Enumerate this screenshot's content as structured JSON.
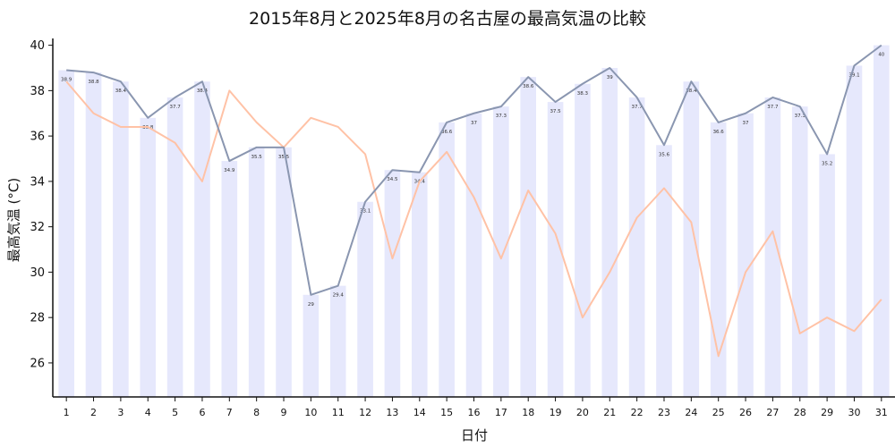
{
  "chart_data": {
    "type": "bar",
    "title": "2015年8月と2025年8月の名古屋の最高気温の比較",
    "xlabel": "日付",
    "ylabel": "最高気温 (°C)",
    "ylim": [
      24.5,
      40.3
    ],
    "yticks": [
      26,
      28,
      30,
      32,
      34,
      36,
      38,
      40
    ],
    "categories": [
      "1",
      "2",
      "3",
      "4",
      "5",
      "6",
      "7",
      "8",
      "9",
      "10",
      "11",
      "12",
      "13",
      "14",
      "15",
      "16",
      "17",
      "18",
      "19",
      "20",
      "21",
      "22",
      "23",
      "24",
      "25",
      "26",
      "27",
      "28",
      "29",
      "30",
      "31"
    ],
    "series": [
      {
        "values": [
          38.9,
          38.8,
          38.4,
          36.8,
          37.7,
          38.4,
          34.9,
          35.5,
          35.5,
          29,
          29.4,
          33.1,
          34.5,
          34.4,
          36.6,
          37,
          37.3,
          38.6,
          37.5,
          38.3,
          39,
          37.7,
          35.6,
          38.4,
          36.6,
          37,
          37.7,
          37.3,
          35.2,
          39.1,
          40
        ],
        "kind": "bar+line",
        "bar_color": "#e6e8fc",
        "line_color": "#8a96b0"
      },
      {
        "values": [
          38.4,
          37.0,
          36.4,
          36.4,
          35.7,
          34.0,
          38.0,
          36.6,
          35.5,
          36.8,
          36.4,
          35.2,
          30.6,
          34.0,
          35.3,
          33.3,
          30.6,
          33.6,
          31.7,
          28.0,
          30.0,
          32.4,
          33.7,
          32.2,
          26.3,
          30.0,
          31.8,
          27.3,
          28.0,
          27.4,
          28.8
        ],
        "kind": "line",
        "line_color": "#ffc2a6"
      }
    ],
    "grid": false,
    "legend": "none"
  }
}
